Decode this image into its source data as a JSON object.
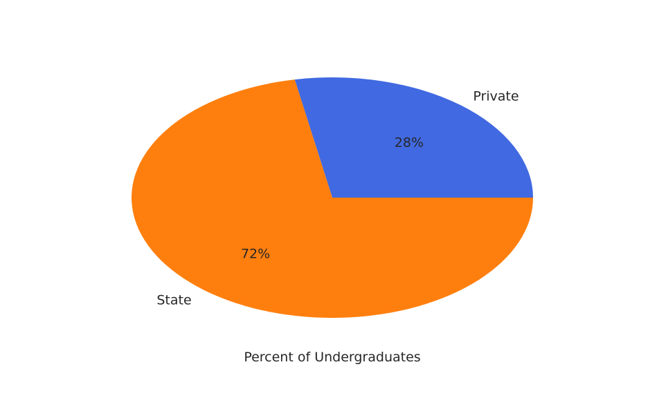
{
  "chart_data": {
    "type": "pie",
    "title": "",
    "xlabel": "Percent of Undergraduates",
    "ylabel": "",
    "slices": [
      {
        "label": "Private",
        "value": 28,
        "pct_label": "28%",
        "color": "#4169e1"
      },
      {
        "label": "State",
        "value": 72,
        "pct_label": "72%",
        "color": "#ff7f0e"
      }
    ],
    "start_angle": 0,
    "direction": "counterclockwise",
    "grid": false,
    "legend": "none"
  }
}
